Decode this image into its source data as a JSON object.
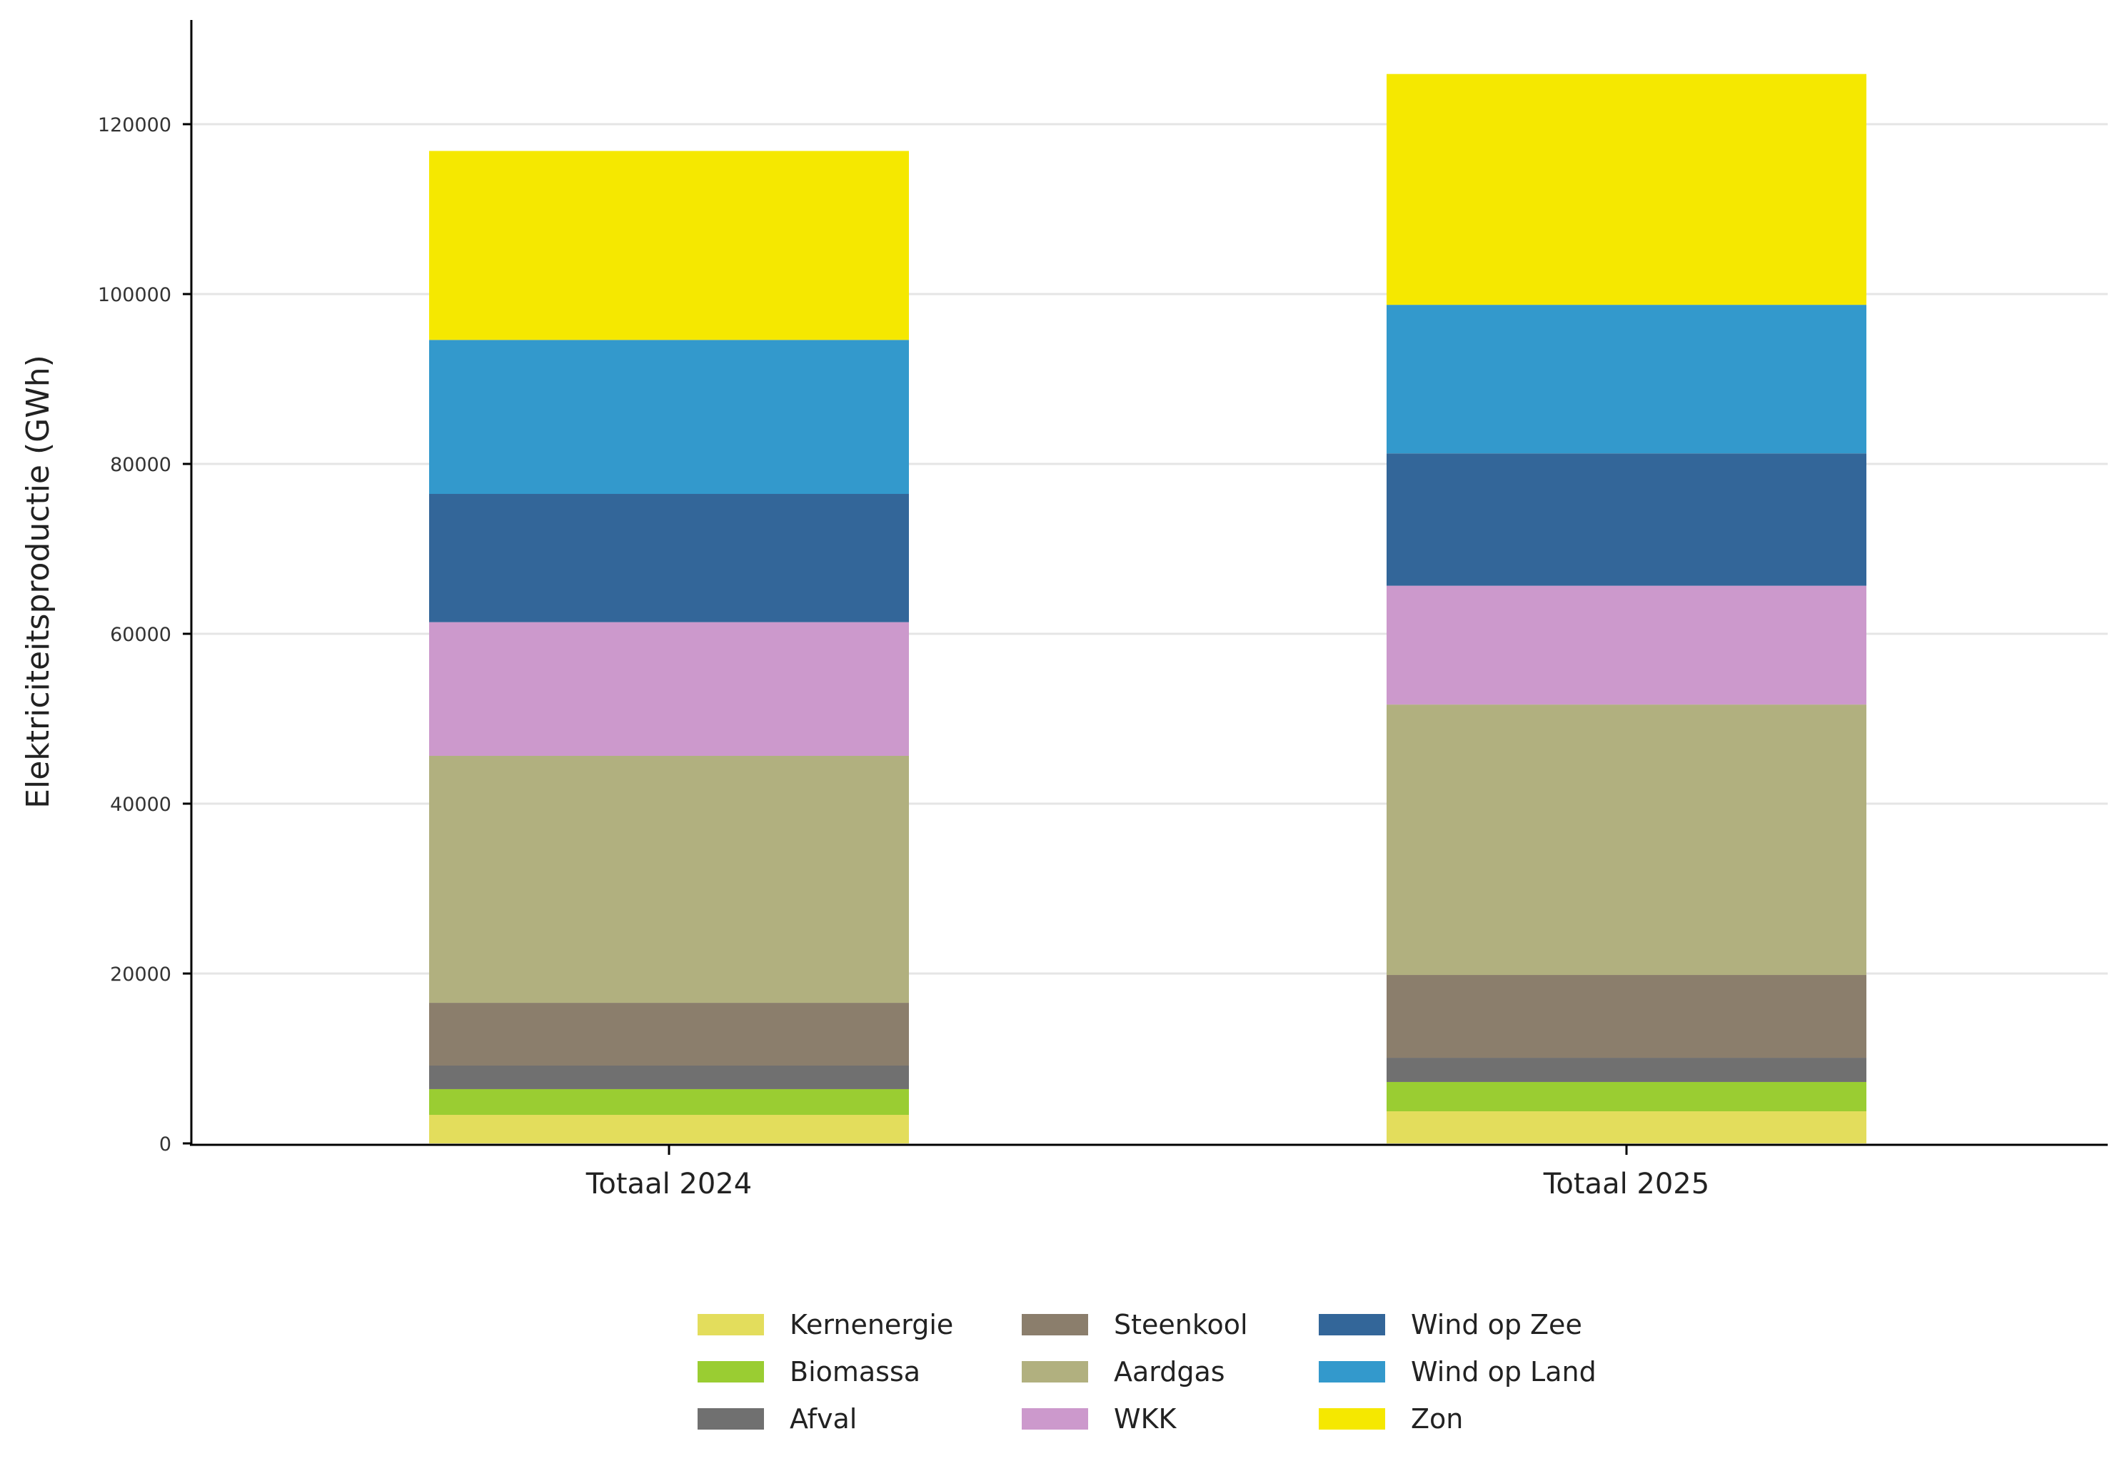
{
  "chart_data": {
    "type": "bar",
    "stacked": true,
    "title": "",
    "xlabel": "",
    "ylabel": "Elektriciteitsproductie (GWh)",
    "ylim": [
      0,
      132000
    ],
    "yticks": [
      0,
      20000,
      40000,
      60000,
      80000,
      100000,
      120000
    ],
    "grid": "horizontal",
    "legend_position": "bottom",
    "categories": [
      "Totaal 2024",
      "Totaal 2025"
    ],
    "series": [
      {
        "name": "Kernenergie",
        "color": "#e3dd5c",
        "values": [
          3360,
          3780
        ]
      },
      {
        "name": "Biomassa",
        "color": "#9acd32",
        "values": [
          3030,
          3450
        ]
      },
      {
        "name": "Afval",
        "color": "#707070",
        "values": [
          2770,
          2850
        ]
      },
      {
        "name": "Steenkool",
        "color": "#8b7e6c",
        "values": [
          7390,
          9750
        ]
      },
      {
        "name": "Aardgas",
        "color": "#b1b07f",
        "values": [
          29080,
          31840
        ]
      },
      {
        "name": "WKK",
        "color": "#cc99cc",
        "values": [
          15740,
          13990
        ]
      },
      {
        "name": "Wind op Zee",
        "color": "#336699",
        "values": [
          15100,
          15580
        ]
      },
      {
        "name": "Wind op Land",
        "color": "#3399cc",
        "values": [
          18130,
          17490
        ]
      },
      {
        "name": "Zon",
        "color": "#f5e800",
        "values": [
          22250,
          27180
        ]
      }
    ]
  }
}
